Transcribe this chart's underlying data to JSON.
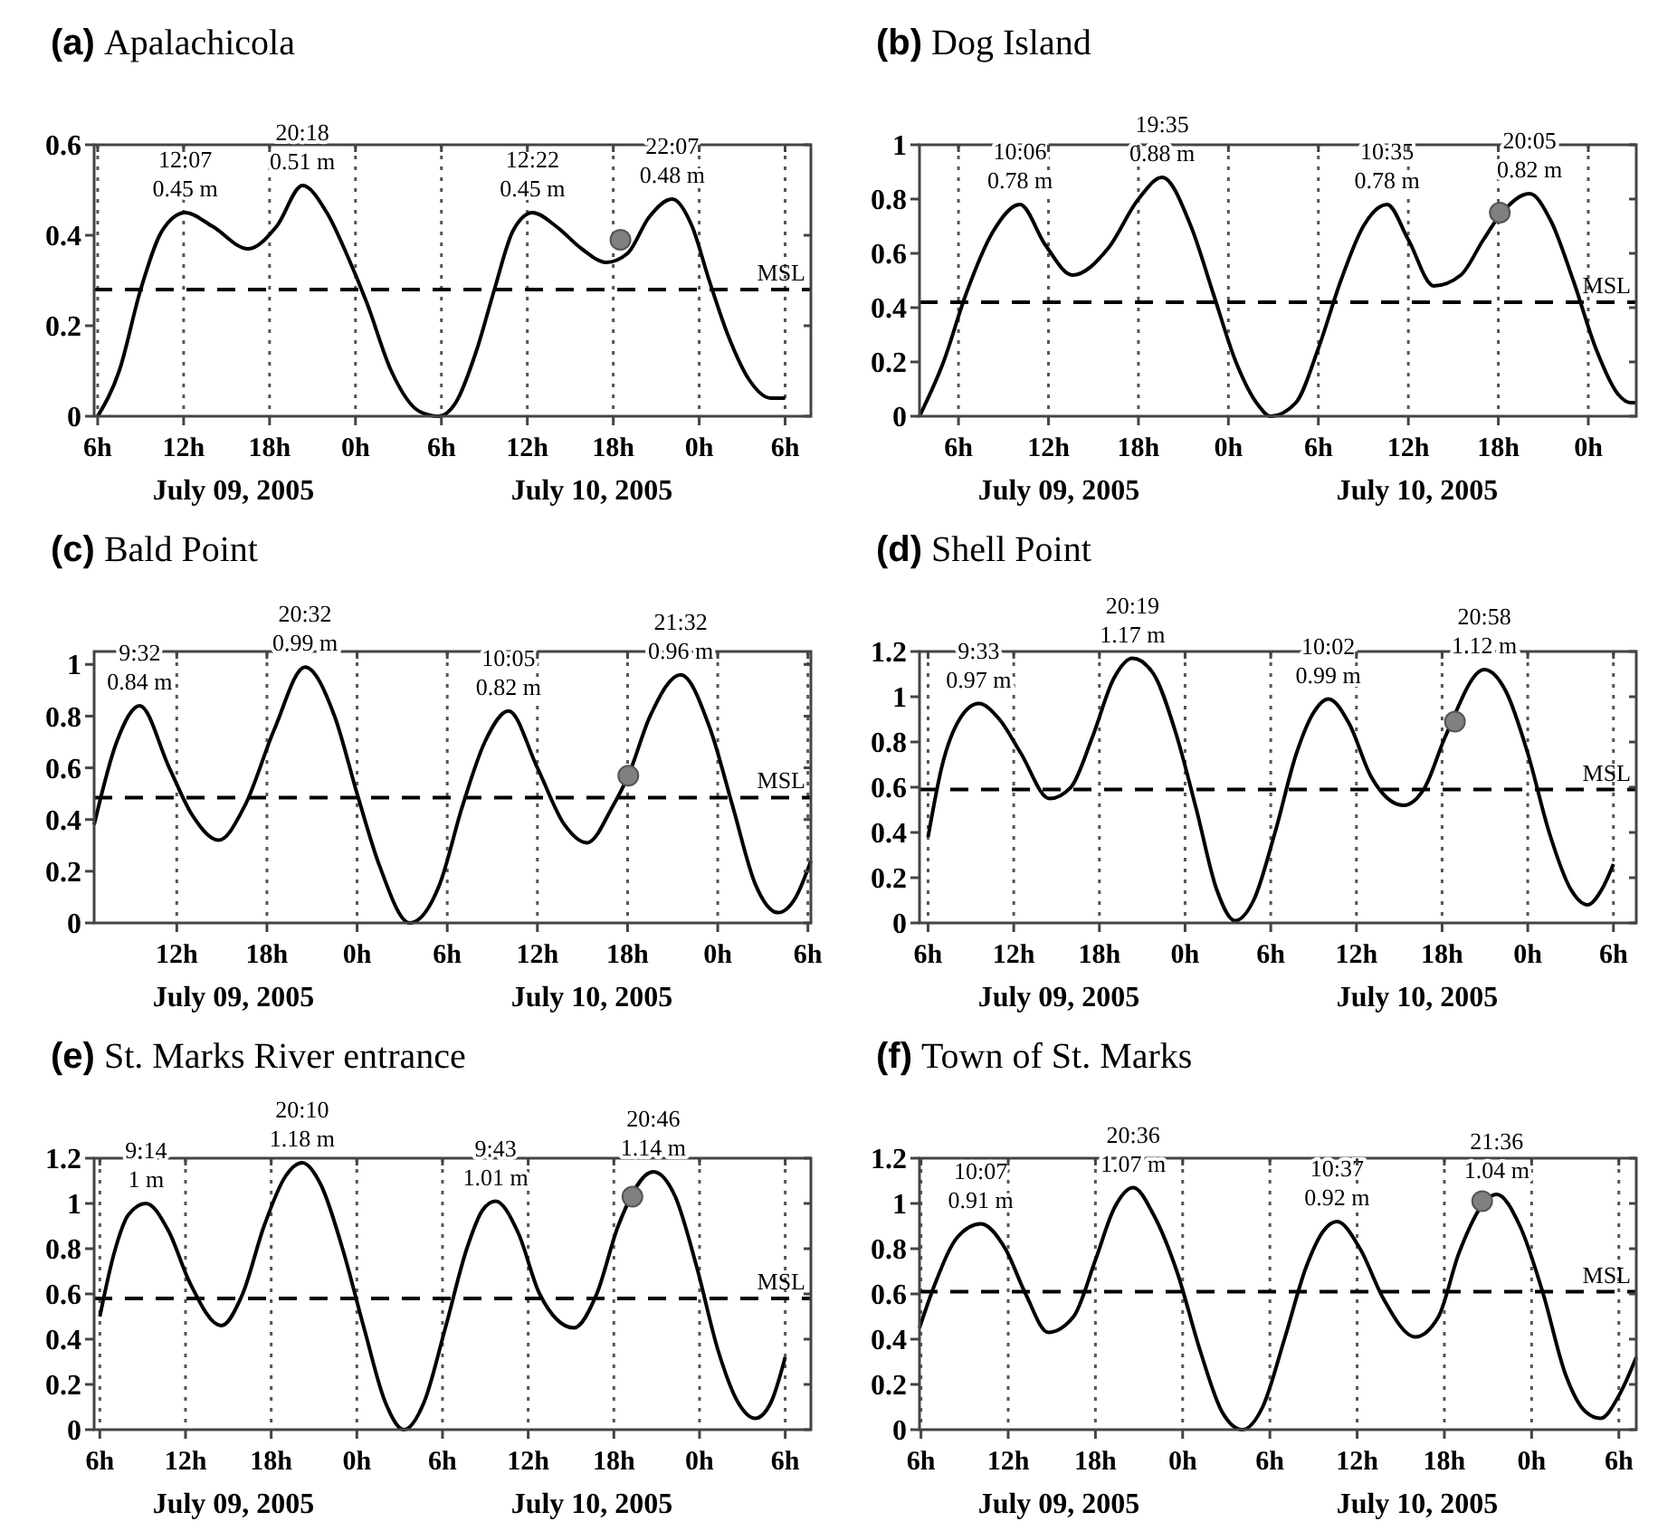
{
  "chart_data": [
    {
      "type": "line",
      "title": "(a) Apalachicola",
      "xlim": [
        "2005-07-09T05:45",
        "2005-07-11T07:48"
      ],
      "ylim": [
        0,
        0.6
      ],
      "yticks": [
        0,
        0.2,
        0.4,
        0.6
      ],
      "xticks": [
        {
          "value": "2005-07-09T06:00",
          "label": "6h"
        },
        {
          "value": "2005-07-09T12:00",
          "label": "12h"
        },
        {
          "value": "2005-07-09T18:00",
          "label": "18h"
        },
        {
          "value": "2005-07-10T00:00",
          "label": "0h"
        },
        {
          "value": "2005-07-10T06:00",
          "label": "6h"
        },
        {
          "value": "2005-07-10T12:00",
          "label": "12h"
        },
        {
          "value": "2005-07-10T18:00",
          "label": "18h"
        },
        {
          "value": "2005-07-11T00:00",
          "label": "0h"
        },
        {
          "value": "2005-07-11T06:00",
          "label": "6h"
        }
      ],
      "grid": "x",
      "marker": "none",
      "series": [
        {
          "color": "#000000",
          "line_style": "solid",
          "x": [
            "2005-07-09T06:00",
            "2005-07-09T07:30",
            "2005-07-09T09:00",
            "2005-07-09T10:30",
            "2005-07-09T12:07",
            "2005-07-09T14:00",
            "2005-07-09T16:30",
            "2005-07-09T18:30",
            "2005-07-09T20:18",
            "2005-07-09T22:00",
            "2005-07-09T23:30",
            "2005-07-10T00:48",
            "2005-07-10T02:30",
            "2005-07-10T04:30",
            "2005-07-10T05:48",
            "2005-07-10T07:00",
            "2005-07-10T08:30",
            "2005-07-10T09:42",
            "2005-07-10T11:00",
            "2005-07-10T12:22",
            "2005-07-10T14:00",
            "2005-07-10T15:48",
            "2005-07-10T17:30",
            "2005-07-10T19:00",
            "2005-07-10T20:30",
            "2005-07-10T22:07",
            "2005-07-10T23:30",
            "2005-07-11T00:42",
            "2005-07-11T02:00",
            "2005-07-11T03:30",
            "2005-07-11T05:00",
            "2005-07-11T06:00"
          ],
          "values": [
            0,
            0.1,
            0.28,
            0.41,
            0.45,
            0.42,
            0.37,
            0.42,
            0.51,
            0.45,
            0.35,
            0.25,
            0.1,
            0.01,
            0,
            0.03,
            0.15,
            0.28,
            0.41,
            0.45,
            0.42,
            0.37,
            0.34,
            0.36,
            0.44,
            0.48,
            0.42,
            0.3,
            0.18,
            0.08,
            0.04,
            0.04
          ]
        },
        {
          "type": "scatter",
          "color": "#808080",
          "marker": "circle",
          "x": [
            "2005-07-10T18:30"
          ],
          "values": [
            0.39
          ]
        }
      ],
      "ref_lines": [
        {
          "axis": "y",
          "value": 0.28,
          "label": "MSL",
          "color": "#000000",
          "line_style": "dashed"
        }
      ],
      "annotations": [
        {
          "text": "12:07\n0.45 m",
          "x": "2005-07-09T12:07",
          "y": 0.45
        },
        {
          "text": "20:18\n0.51 m",
          "x": "2005-07-09T20:18",
          "y": 0.51
        },
        {
          "text": "12:22\n0.45 m",
          "x": "2005-07-10T12:22",
          "y": 0.45
        },
        {
          "text": "22:07\n0.48 m",
          "x": "2005-07-10T22:07",
          "y": 0.48
        },
        "July 09, 2005",
        "July 10, 2005"
      ]
    },
    {
      "type": "line",
      "title": "(b) Dog Island",
      "xlim": [
        "2005-07-09T03:24",
        "2005-07-11T03:12"
      ],
      "ylim": [
        0,
        1
      ],
      "yticks": [
        0,
        0.2,
        0.4,
        0.6,
        0.8,
        1
      ],
      "xticks": [
        {
          "value": "2005-07-09T06:00",
          "label": "6h"
        },
        {
          "value": "2005-07-09T12:00",
          "label": "12h"
        },
        {
          "value": "2005-07-09T18:00",
          "label": "18h"
        },
        {
          "value": "2005-07-10T00:00",
          "label": "0h"
        },
        {
          "value": "2005-07-10T06:00",
          "label": "6h"
        },
        {
          "value": "2005-07-10T12:00",
          "label": "12h"
        },
        {
          "value": "2005-07-10T18:00",
          "label": "18h"
        },
        {
          "value": "2005-07-11T00:00",
          "label": "0h"
        }
      ],
      "grid": "x",
      "marker": "none",
      "series": [
        {
          "color": "#000000",
          "line_style": "solid",
          "x": [
            "2005-07-09T03:24",
            "2005-07-09T05:00",
            "2005-07-09T06:30",
            "2005-07-09T08:18",
            "2005-07-09T10:06",
            "2005-07-09T11:48",
            "2005-07-09T13:36",
            "2005-07-09T16:00",
            "2005-07-09T18:00",
            "2005-07-09T19:35",
            "2005-07-09T21:30",
            "2005-07-09T23:00",
            "2005-07-10T00:30",
            "2005-07-10T02:00",
            "2005-07-10T02:48",
            "2005-07-10T04:30",
            "2005-07-10T06:00",
            "2005-07-10T07:30",
            "2005-07-10T09:00",
            "2005-07-10T10:35",
            "2005-07-10T12:00",
            "2005-07-10T13:42",
            "2005-07-10T15:30",
            "2005-07-10T17:00",
            "2005-07-10T18:06",
            "2005-07-10T20:05",
            "2005-07-10T21:30",
            "2005-07-10T23:00",
            "2005-07-11T00:30",
            "2005-07-11T02:00",
            "2005-07-11T02:48",
            "2005-07-11T03:12"
          ],
          "values": [
            0,
            0.2,
            0.45,
            0.68,
            0.78,
            0.63,
            0.52,
            0.62,
            0.8,
            0.88,
            0.7,
            0.45,
            0.2,
            0.04,
            0,
            0.05,
            0.25,
            0.5,
            0.7,
            0.78,
            0.65,
            0.48,
            0.52,
            0.65,
            0.74,
            0.82,
            0.72,
            0.5,
            0.25,
            0.08,
            0.05,
            0.05
          ]
        },
        {
          "type": "scatter",
          "color": "#808080",
          "marker": "circle",
          "x": [
            "2005-07-10T18:06"
          ],
          "values": [
            0.75
          ]
        }
      ],
      "ref_lines": [
        {
          "axis": "y",
          "value": 0.42,
          "label": "MSL",
          "color": "#000000",
          "line_style": "dashed"
        }
      ],
      "annotations": [
        {
          "text": "10:06\n0.78 m",
          "x": "2005-07-09T10:06",
          "y": 0.78
        },
        {
          "text": "19:35\n0.88 m",
          "x": "2005-07-09T19:35",
          "y": 0.88
        },
        {
          "text": "10:35\n0.78 m",
          "x": "2005-07-10T10:35",
          "y": 0.78
        },
        {
          "text": "20:05\n0.82 m",
          "x": "2005-07-10T20:05",
          "y": 0.82
        },
        "July 09, 2005",
        "July 10, 2005"
      ]
    },
    {
      "type": "line",
      "title": "(c) Bald Point",
      "xlim": [
        "2005-07-09T06:30",
        "2005-07-11T06:12"
      ],
      "ylim": [
        0,
        1.05
      ],
      "yticks": [
        0,
        0.2,
        0.4,
        0.6,
        0.8,
        1
      ],
      "xticks": [
        {
          "value": "2005-07-09T12:00",
          "label": "12h"
        },
        {
          "value": "2005-07-09T18:00",
          "label": "18h"
        },
        {
          "value": "2005-07-10T00:00",
          "label": "0h"
        },
        {
          "value": "2005-07-10T06:00",
          "label": "6h"
        },
        {
          "value": "2005-07-10T12:00",
          "label": "12h"
        },
        {
          "value": "2005-07-10T18:00",
          "label": "18h"
        },
        {
          "value": "2005-07-11T00:00",
          "label": "0h"
        },
        {
          "value": "2005-07-11T06:00",
          "label": "6h"
        }
      ],
      "grid": "x",
      "marker": "none",
      "series": [
        {
          "color": "#000000",
          "line_style": "solid",
          "x": [
            "2005-07-09T06:30",
            "2005-07-09T08:00",
            "2005-07-09T09:32",
            "2005-07-09T11:30",
            "2005-07-09T13:00",
            "2005-07-09T14:48",
            "2005-07-09T16:30",
            "2005-07-09T18:30",
            "2005-07-09T20:32",
            "2005-07-09T22:30",
            "2005-07-10T00:00",
            "2005-07-10T01:30",
            "2005-07-10T03:30",
            "2005-07-10T05:30",
            "2005-07-10T07:00",
            "2005-07-10T08:30",
            "2005-07-10T10:05",
            "2005-07-10T12:00",
            "2005-07-10T13:48",
            "2005-07-10T15:18",
            "2005-07-10T17:00",
            "2005-07-10T18:03",
            "2005-07-10T19:30",
            "2005-07-10T21:32",
            "2005-07-10T23:30",
            "2005-07-11T01:00",
            "2005-07-11T02:30",
            "2005-07-11T04:00",
            "2005-07-11T05:12",
            "2005-07-11T06:12"
          ],
          "values": [
            0.38,
            0.7,
            0.84,
            0.6,
            0.42,
            0.32,
            0.45,
            0.75,
            0.99,
            0.8,
            0.5,
            0.22,
            0,
            0.15,
            0.45,
            0.7,
            0.82,
            0.6,
            0.38,
            0.31,
            0.45,
            0.57,
            0.8,
            0.96,
            0.75,
            0.45,
            0.15,
            0.04,
            0.1,
            0.24
          ]
        },
        {
          "type": "scatter",
          "color": "#808080",
          "marker": "circle",
          "x": [
            "2005-07-10T18:03"
          ],
          "values": [
            0.57
          ]
        }
      ],
      "ref_lines": [
        {
          "axis": "y",
          "value": 0.485,
          "label": "MSL",
          "color": "#000000",
          "line_style": "dashed"
        }
      ],
      "annotations": [
        {
          "text": "9:32\n0.84 m",
          "x": "2005-07-09T09:32",
          "y": 0.84
        },
        {
          "text": "20:32\n0.99 m",
          "x": "2005-07-09T20:32",
          "y": 0.99
        },
        {
          "text": "10:05\n0.82 m",
          "x": "2005-07-10T10:05",
          "y": 0.82
        },
        {
          "text": "21:32\n0.96 m",
          "x": "2005-07-10T21:32",
          "y": 0.96
        },
        "July 09, 2005",
        "July 10, 2005"
      ]
    },
    {
      "type": "line",
      "title": "(d) Shell Point",
      "xlim": [
        "2005-07-09T05:24",
        "2005-07-11T07:36"
      ],
      "ylim": [
        0,
        1.2
      ],
      "yticks": [
        0,
        0.2,
        0.4,
        0.6,
        0.8,
        1,
        1.2
      ],
      "xticks": [
        {
          "value": "2005-07-09T06:00",
          "label": "6h"
        },
        {
          "value": "2005-07-09T12:00",
          "label": "12h"
        },
        {
          "value": "2005-07-09T18:00",
          "label": "18h"
        },
        {
          "value": "2005-07-10T00:00",
          "label": "0h"
        },
        {
          "value": "2005-07-10T06:00",
          "label": "6h"
        },
        {
          "value": "2005-07-10T12:00",
          "label": "12h"
        },
        {
          "value": "2005-07-10T18:00",
          "label": "18h"
        },
        {
          "value": "2005-07-11T00:00",
          "label": "0h"
        },
        {
          "value": "2005-07-11T06:00",
          "label": "6h"
        }
      ],
      "grid": "x",
      "marker": "none",
      "series": [
        {
          "color": "#000000",
          "line_style": "solid",
          "x": [
            "2005-07-09T06:00",
            "2005-07-09T07:00",
            "2005-07-09T08:12",
            "2005-07-09T09:33",
            "2005-07-09T11:00",
            "2005-07-09T12:30",
            "2005-07-09T14:30",
            "2005-07-09T16:00",
            "2005-07-09T17:30",
            "2005-07-09T19:00",
            "2005-07-09T20:19",
            "2005-07-09T21:48",
            "2005-07-09T23:18",
            "2005-07-10T00:48",
            "2005-07-10T02:12",
            "2005-07-10T03:30",
            "2005-07-10T04:48",
            "2005-07-10T06:18",
            "2005-07-10T07:48",
            "2005-07-10T09:00",
            "2005-07-10T10:02",
            "2005-07-10T11:30",
            "2005-07-10T13:00",
            "2005-07-10T15:18",
            "2005-07-10T16:48",
            "2005-07-10T18:12",
            "2005-07-10T20:58",
            "2005-07-10T22:30",
            "2005-07-11T00:00",
            "2005-07-11T01:30",
            "2005-07-11T03:00",
            "2005-07-11T04:12",
            "2005-07-11T05:12",
            "2005-07-11T06:00"
          ],
          "values": [
            0.38,
            0.7,
            0.9,
            0.97,
            0.9,
            0.75,
            0.55,
            0.6,
            0.82,
            1.08,
            1.17,
            1.1,
            0.85,
            0.5,
            0.15,
            0.01,
            0.1,
            0.4,
            0.75,
            0.93,
            0.99,
            0.88,
            0.65,
            0.52,
            0.6,
            0.82,
            1.12,
            1.02,
            0.75,
            0.4,
            0.15,
            0.08,
            0.15,
            0.26
          ]
        },
        {
          "type": "scatter",
          "color": "#808080",
          "marker": "circle",
          "x": [
            "2005-07-10T18:54"
          ],
          "values": [
            0.89
          ]
        }
      ],
      "ref_lines": [
        {
          "axis": "y",
          "value": 0.59,
          "label": "MSL",
          "color": "#000000",
          "line_style": "dashed"
        }
      ],
      "annotations": [
        {
          "text": "9:33\n0.97 m",
          "x": "2005-07-09T09:33",
          "y": 0.97
        },
        {
          "text": "20:19\n1.17 m",
          "x": "2005-07-09T20:19",
          "y": 1.17
        },
        {
          "text": "10:02\n0.99 m",
          "x": "2005-07-10T10:02",
          "y": 0.99
        },
        {
          "text": "20:58\n1.12 m",
          "x": "2005-07-10T20:58",
          "y": 1.12
        },
        "July 09, 2005",
        "July 10, 2005"
      ]
    },
    {
      "type": "line",
      "title": "(e) St. Marks River entrance",
      "xlim": [
        "2005-07-09T05:36",
        "2005-07-11T07:48"
      ],
      "ylim": [
        0,
        1.2
      ],
      "yticks": [
        0,
        0.2,
        0.4,
        0.6,
        0.8,
        1,
        1.2
      ],
      "xticks": [
        {
          "value": "2005-07-09T06:00",
          "label": "6h"
        },
        {
          "value": "2005-07-09T12:00",
          "label": "12h"
        },
        {
          "value": "2005-07-09T18:00",
          "label": "18h"
        },
        {
          "value": "2005-07-10T00:00",
          "label": "0h"
        },
        {
          "value": "2005-07-10T06:00",
          "label": "6h"
        },
        {
          "value": "2005-07-10T12:00",
          "label": "12h"
        },
        {
          "value": "2005-07-10T18:00",
          "label": "18h"
        },
        {
          "value": "2005-07-11T00:00",
          "label": "0h"
        },
        {
          "value": "2005-07-11T06:00",
          "label": "6h"
        }
      ],
      "grid": "x",
      "marker": "none",
      "series": [
        {
          "color": "#000000",
          "line_style": "solid",
          "x": [
            "2005-07-09T06:00",
            "2005-07-09T07:00",
            "2005-07-09T08:00",
            "2005-07-09T09:14",
            "2005-07-09T10:48",
            "2005-07-09T12:18",
            "2005-07-09T14:30",
            "2005-07-09T16:00",
            "2005-07-09T17:30",
            "2005-07-09T19:00",
            "2005-07-09T20:10",
            "2005-07-09T21:30",
            "2005-07-09T23:00",
            "2005-07-10T00:30",
            "2005-07-10T02:00",
            "2005-07-10T03:18",
            "2005-07-10T04:42",
            "2005-07-10T06:12",
            "2005-07-10T07:42",
            "2005-07-10T08:48",
            "2005-07-10T09:43",
            "2005-07-10T11:18",
            "2005-07-10T12:48",
            "2005-07-10T15:12",
            "2005-07-10T16:48",
            "2005-07-10T18:18",
            "2005-07-10T20:46",
            "2005-07-10T22:18",
            "2005-07-10T23:48",
            "2005-07-11T01:18",
            "2005-07-11T02:42",
            "2005-07-11T03:54",
            "2005-07-11T05:00",
            "2005-07-11T06:00"
          ],
          "values": [
            0.5,
            0.78,
            0.95,
            1,
            0.88,
            0.65,
            0.46,
            0.6,
            0.9,
            1.12,
            1.18,
            1.08,
            0.8,
            0.45,
            0.12,
            0,
            0.12,
            0.45,
            0.8,
            0.97,
            1.01,
            0.87,
            0.6,
            0.45,
            0.6,
            0.9,
            1.14,
            1.03,
            0.72,
            0.35,
            0.12,
            0.05,
            0.12,
            0.32
          ]
        },
        {
          "type": "scatter",
          "color": "#808080",
          "marker": "circle",
          "x": [
            "2005-07-10T19:18"
          ],
          "values": [
            1.03
          ]
        }
      ],
      "ref_lines": [
        {
          "axis": "y",
          "value": 0.58,
          "label": "MSL",
          "color": "#000000",
          "line_style": "dashed"
        }
      ],
      "annotations": [
        {
          "text": "9:14\n1 m",
          "x": "2005-07-09T09:14",
          "y": 1
        },
        {
          "text": "20:10\n1.18 m",
          "x": "2005-07-09T20:10",
          "y": 1.18
        },
        {
          "text": "9:43\n1.01 m",
          "x": "2005-07-10T09:43",
          "y": 1.01
        },
        {
          "text": "20:46\n1.14 m",
          "x": "2005-07-10T20:46",
          "y": 1.14
        },
        "July 09, 2005",
        "July 10, 2005"
      ]
    },
    {
      "type": "line",
      "title": "(f) Town of St. Marks",
      "xlim": [
        "2005-07-09T05:54",
        "2005-07-11T07:12"
      ],
      "ylim": [
        0,
        1.2
      ],
      "yticks": [
        0,
        0.2,
        0.4,
        0.6,
        0.8,
        1,
        1.2
      ],
      "xticks": [
        {
          "value": "2005-07-09T06:00",
          "label": "6h"
        },
        {
          "value": "2005-07-09T12:00",
          "label": "12h"
        },
        {
          "value": "2005-07-09T18:00",
          "label": "18h"
        },
        {
          "value": "2005-07-10T00:00",
          "label": "0h"
        },
        {
          "value": "2005-07-10T06:00",
          "label": "6h"
        },
        {
          "value": "2005-07-10T12:00",
          "label": "12h"
        },
        {
          "value": "2005-07-10T18:00",
          "label": "18h"
        },
        {
          "value": "2005-07-11T00:00",
          "label": "0h"
        },
        {
          "value": "2005-07-11T06:00",
          "label": "6h"
        }
      ],
      "grid": "x",
      "marker": "none",
      "series": [
        {
          "color": "#000000",
          "line_style": "solid",
          "x": [
            "2005-07-09T05:54",
            "2005-07-09T07:00",
            "2005-07-09T08:30",
            "2005-07-09T10:07",
            "2005-07-09T11:48",
            "2005-07-09T13:12",
            "2005-07-09T14:45",
            "2005-07-09T16:30",
            "2005-07-09T18:00",
            "2005-07-09T19:18",
            "2005-07-09T20:36",
            "2005-07-09T22:00",
            "2005-07-09T23:36",
            "2005-07-10T01:12",
            "2005-07-10T02:42",
            "2005-07-10T04:06",
            "2005-07-10T05:30",
            "2005-07-10T07:00",
            "2005-07-10T08:30",
            "2005-07-10T09:42",
            "2005-07-10T10:37",
            "2005-07-10T12:12",
            "2005-07-10T13:48",
            "2005-07-10T16:00",
            "2005-07-10T17:36",
            "2005-07-10T19:00",
            "2005-07-10T21:36",
            "2005-07-10T23:12",
            "2005-07-11T00:48",
            "2005-07-11T02:18",
            "2005-07-11T03:42",
            "2005-07-11T04:45",
            "2005-07-11T06:00",
            "2005-07-11T07:12"
          ],
          "values": [
            0.45,
            0.65,
            0.85,
            0.91,
            0.8,
            0.6,
            0.43,
            0.5,
            0.75,
            0.98,
            1.07,
            0.95,
            0.7,
            0.35,
            0.08,
            0,
            0.1,
            0.4,
            0.72,
            0.88,
            0.92,
            0.8,
            0.58,
            0.41,
            0.5,
            0.78,
            1.04,
            0.9,
            0.6,
            0.25,
            0.08,
            0.05,
            0.15,
            0.32
          ]
        },
        {
          "type": "scatter",
          "color": "#808080",
          "marker": "circle",
          "x": [
            "2005-07-10T20:36"
          ],
          "values": [
            1.01
          ]
        }
      ],
      "ref_lines": [
        {
          "axis": "y",
          "value": 0.61,
          "label": "MSL",
          "color": "#000000",
          "line_style": "dashed"
        }
      ],
      "annotations": [
        {
          "text": "10:07\n0.91 m",
          "x": "2005-07-09T10:07",
          "y": 0.91
        },
        {
          "text": "20:36\n1.07 m",
          "x": "2005-07-09T20:36",
          "y": 1.07
        },
        {
          "text": "10:37\n0.92 m",
          "x": "2005-07-10T10:37",
          "y": 0.92
        },
        {
          "text": "21:36\n1.04 m",
          "x": "2005-07-10T21:36",
          "y": 1.04
        },
        "July 09, 2005",
        "July 10, 2005"
      ]
    }
  ]
}
